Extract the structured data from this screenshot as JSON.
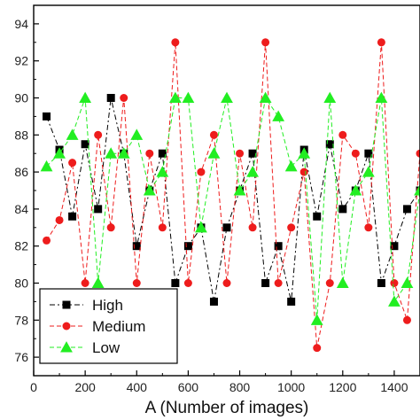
{
  "chart_data": {
    "type": "scatter",
    "xlabel": "A (Number of images)",
    "ylabel": "",
    "xlim": [
      0,
      1500
    ],
    "ylim": [
      75,
      95
    ],
    "x_ticks": [
      0,
      200,
      400,
      600,
      800,
      1000,
      1200,
      1400
    ],
    "y_ticks": [
      76,
      78,
      80,
      82,
      84,
      86,
      88,
      90,
      92,
      94
    ],
    "x_tick_labels": [
      "0",
      "200",
      "400",
      "600",
      "800",
      "1000",
      "1200",
      "1400"
    ],
    "y_tick_labels": [
      "76",
      "78",
      "80",
      "82",
      "84",
      "86",
      "88",
      "90",
      "92",
      "94"
    ],
    "grid": false,
    "legend_position": "bottom-left",
    "series": [
      {
        "name": "High",
        "color": "#000000",
        "marker": "square",
        "line_style": "dash-dot",
        "x": [
          50,
          100,
          150,
          200,
          250,
          300,
          350,
          400,
          450,
          500,
          550,
          600,
          650,
          700,
          750,
          800,
          850,
          900,
          950,
          1000,
          1050,
          1100,
          1150,
          1200,
          1250,
          1300,
          1350,
          1400,
          1450,
          1500
        ],
        "y": [
          89,
          87.2,
          83.6,
          87.5,
          84,
          90,
          87,
          82,
          85,
          87,
          80,
          82,
          83,
          79,
          83,
          85,
          87,
          80,
          82,
          79,
          87.2,
          83.6,
          87.5,
          84,
          85,
          87,
          80,
          82,
          84,
          85
        ]
      },
      {
        "name": "Medium",
        "color": "#ee1c1c",
        "marker": "circle",
        "line_style": "dashed",
        "x": [
          50,
          100,
          150,
          200,
          250,
          300,
          350,
          400,
          450,
          500,
          550,
          600,
          650,
          700,
          750,
          800,
          850,
          900,
          950,
          1000,
          1050,
          1100,
          1150,
          1200,
          1250,
          1300,
          1350,
          1400,
          1450,
          1500
        ],
        "y": [
          82.3,
          83.4,
          86.5,
          80,
          88,
          83,
          90,
          80,
          87,
          83,
          93,
          80,
          86,
          88,
          80,
          87,
          83,
          93,
          80,
          83,
          86,
          76.5,
          80,
          88,
          87,
          83,
          93,
          80,
          78,
          87
        ]
      },
      {
        "name": "Low",
        "color": "#22ee22",
        "marker": "triangle",
        "line_style": "dashed",
        "x": [
          50,
          100,
          150,
          200,
          250,
          300,
          350,
          400,
          450,
          500,
          550,
          600,
          650,
          700,
          750,
          800,
          850,
          900,
          950,
          1000,
          1050,
          1100,
          1150,
          1200,
          1250,
          1300,
          1350,
          1400,
          1450,
          1500
        ],
        "y": [
          86.3,
          87,
          88,
          90,
          80,
          87,
          87,
          88,
          85,
          86,
          90,
          90,
          83,
          87,
          90,
          85,
          86,
          90,
          89,
          86.3,
          87,
          78,
          90,
          80,
          85,
          86,
          90,
          79,
          80,
          85
        ]
      }
    ]
  }
}
